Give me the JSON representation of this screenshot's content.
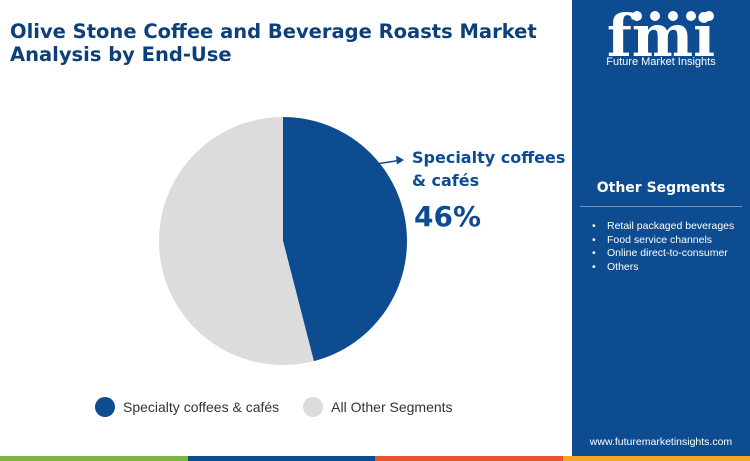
{
  "title": "Olive Stone Coffee and Beverage Roasts Market Analysis by End-Use",
  "brand": {
    "logo_text": "fmi",
    "name": "Future Market Insights",
    "url": "www.futuremarketinsights.com"
  },
  "other_segments": {
    "heading": "Other Segments",
    "items": [
      "Retail packaged beverages",
      "Food service channels",
      "Online direct-to-consumer",
      "Others"
    ]
  },
  "chart_data": {
    "type": "pie",
    "title": "Olive Stone Coffee and Beverage Roasts Market Analysis by End-Use",
    "slices": [
      {
        "label": "Specialty coffees & cafés",
        "value": 46,
        "value_label": "46%",
        "color": "#0d4c91"
      },
      {
        "label": "All Other Segments",
        "value": 54,
        "color": "#dcdcdc"
      }
    ],
    "legend_position": "bottom"
  },
  "colors": {
    "accent": "#0d4c91",
    "title": "#0d3f7a",
    "other": "#dcdcdc"
  }
}
